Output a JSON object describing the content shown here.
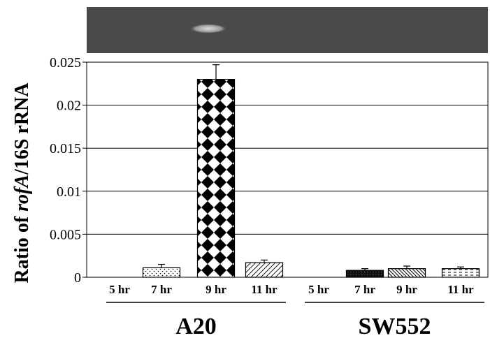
{
  "chart_data": {
    "type": "bar",
    "ylabel_parts": {
      "prefix": "Ratio of ",
      "italic": "rofA",
      "suffix": "/16S rRNA"
    },
    "ylim": [
      0,
      0.025
    ],
    "yticks": [
      "0",
      "0.005",
      "0.01",
      "0.015",
      "0.02",
      "0.025"
    ],
    "ytick_values": [
      0,
      0.005,
      0.01,
      0.015,
      0.02,
      0.025
    ],
    "grid": true,
    "groups": [
      {
        "name": "A20",
        "bars": [
          {
            "label": "5 hr",
            "value": 0,
            "error": 0,
            "pattern": "none"
          },
          {
            "label": "7 hr",
            "value": 0.0011,
            "error": 0.0004,
            "pattern": "dots"
          },
          {
            "label": "9 hr",
            "value": 0.023,
            "error": 0.0017,
            "pattern": "checker"
          },
          {
            "label": "11 hr",
            "value": 0.0017,
            "error": 0.0003,
            "pattern": "hatch-up"
          }
        ]
      },
      {
        "name": "SW552",
        "bars": [
          {
            "label": "5 hr",
            "value": 0,
            "error": 0,
            "pattern": "none"
          },
          {
            "label": "7 hr",
            "value": 0.0008,
            "error": 0.0002,
            "pattern": "dense"
          },
          {
            "label": "9 hr",
            "value": 0.001,
            "error": 0.0003,
            "pattern": "hatch-down"
          },
          {
            "label": "11 hr",
            "value": 0.001,
            "error": 0.0002,
            "pattern": "dashes"
          }
        ]
      }
    ],
    "gel_band": {
      "present_in": "A20 9 hr"
    }
  },
  "colors": {
    "gel_background": "#4a4a4a",
    "gel_band": "#cfcfcf",
    "axis": "#000000",
    "grid": "#000000"
  }
}
